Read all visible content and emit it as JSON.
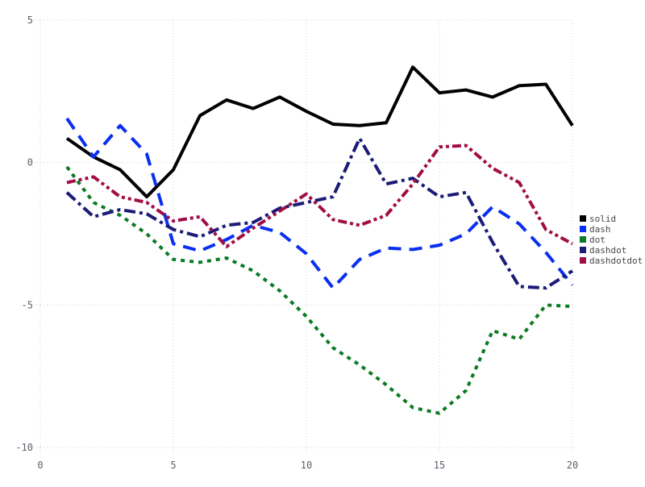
{
  "figure": {
    "background": "#ffffff",
    "grid_color": "#ccd0e2",
    "grid_style": "dotted",
    "tick_text_color": "#5a5f6b",
    "legend_text_color": "#474747",
    "legend_position": "right-middle"
  },
  "chart_data": {
    "type": "line",
    "x": [
      1,
      2,
      3,
      4,
      5,
      6,
      7,
      8,
      9,
      10,
      11,
      12,
      13,
      14,
      15,
      16,
      17,
      18,
      19,
      20
    ],
    "xlim": [
      0,
      20
    ],
    "ylim": [
      -10,
      5
    ],
    "x_tick_values": [
      0,
      5,
      10,
      15,
      20
    ],
    "x_tick_labels": [
      "0",
      "5",
      "10",
      "15",
      "20"
    ],
    "y_tick_values": [
      5,
      0,
      -5,
      -10
    ],
    "y_tick_labels": [
      "5",
      "0",
      "-5",
      "-10"
    ],
    "title": "",
    "xlabel": "",
    "ylabel": "",
    "grid": "dotted",
    "legend_position": "right",
    "legend_entries": [
      "solid",
      "dash",
      "dot",
      "dashdot",
      "dashdotdot"
    ],
    "series": [
      {
        "name": "solid",
        "dash": "solid",
        "color": "#000000",
        "values": [
          0.85,
          0.2,
          -0.25,
          -1.2,
          -0.25,
          1.65,
          2.2,
          1.9,
          2.3,
          1.8,
          1.35,
          1.3,
          1.4,
          3.35,
          2.45,
          2.55,
          2.3,
          2.7,
          2.75,
          1.3
        ]
      },
      {
        "name": "dash",
        "dash": "dash",
        "color": "#0a2ff0",
        "values": [
          1.55,
          0.2,
          1.3,
          0.3,
          -2.85,
          -3.1,
          -2.7,
          -2.2,
          -2.45,
          -3.2,
          -4.4,
          -3.4,
          -3.0,
          -3.05,
          -2.9,
          -2.5,
          -1.55,
          -2.15,
          -3.15,
          -4.3
        ]
      },
      {
        "name": "dot",
        "dash": "dot",
        "color": "#0c7a23",
        "values": [
          -0.15,
          -1.4,
          -1.85,
          -2.5,
          -3.4,
          -3.5,
          -3.35,
          -3.8,
          -4.5,
          -5.4,
          -6.5,
          -7.1,
          -7.8,
          -8.6,
          -8.8,
          -8.0,
          -5.9,
          -6.2,
          -5.0,
          -5.05
        ]
      },
      {
        "name": "dashdot",
        "dash": "dashdot",
        "color": "#1b1b78",
        "values": [
          -1.05,
          -1.9,
          -1.65,
          -1.8,
          -2.35,
          -2.6,
          -2.2,
          -2.1,
          -1.6,
          -1.4,
          -1.2,
          0.85,
          -0.75,
          -0.55,
          -1.2,
          -1.05,
          -2.8,
          -4.35,
          -4.4,
          -3.8
        ]
      },
      {
        "name": "dashdotdot",
        "dash": "dashdotdot",
        "color": "#a10d45",
        "values": [
          -0.7,
          -0.5,
          -1.2,
          -1.4,
          -2.05,
          -1.9,
          -2.95,
          -2.3,
          -1.7,
          -1.1,
          -2.0,
          -2.2,
          -1.85,
          -0.75,
          0.55,
          0.6,
          -0.2,
          -0.7,
          -2.35,
          -2.85
        ]
      }
    ]
  }
}
